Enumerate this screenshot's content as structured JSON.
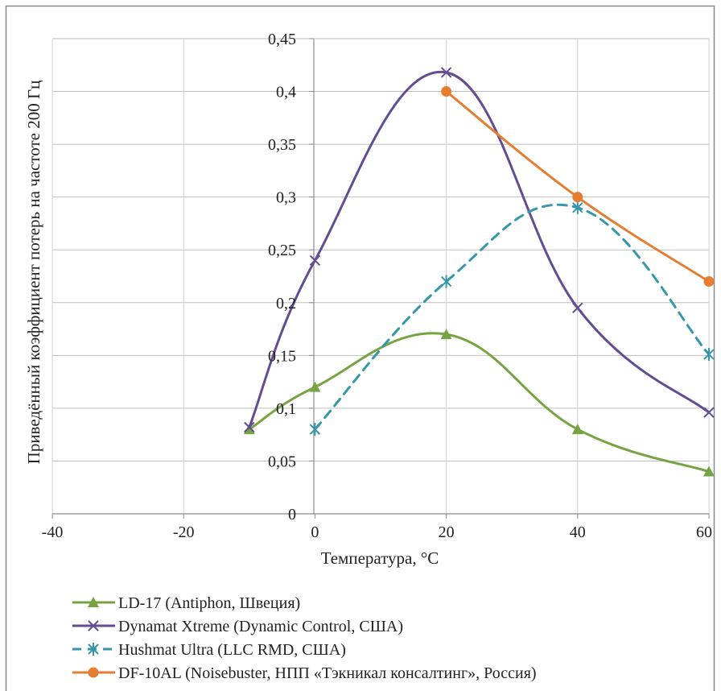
{
  "chart_data": {
    "type": "line",
    "title": "",
    "xlabel": "Температура, °С",
    "ylabel": "Приведённый коэффициент потерь на частоте 200 Гц",
    "xlim": [
      -40,
      60
    ],
    "ylim": [
      0,
      0.45
    ],
    "x_ticks": [
      -40,
      -20,
      0,
      20,
      40,
      60
    ],
    "x_tick_labels": [
      "-40",
      "-20",
      "0",
      "20",
      "40",
      "60"
    ],
    "y_ticks": [
      0,
      0.05,
      0.1,
      0.15,
      0.2,
      0.25,
      0.3,
      0.35,
      0.4,
      0.45
    ],
    "y_tick_labels": [
      "0",
      "0,05",
      "0,1",
      "0,15",
      "0,2",
      "0,25",
      "0,3",
      "0,35",
      "0,4",
      "0,45"
    ],
    "grid": true,
    "legend_position": "bottom",
    "series": [
      {
        "name": "LD-17 (Antiphon, Швеция)",
        "color": "#77a342",
        "marker": "triangle",
        "dash": "solid",
        "x": [
          -10,
          0,
          20,
          40,
          60
        ],
        "y": [
          0.08,
          0.12,
          0.17,
          0.08,
          0.04
        ]
      },
      {
        "name": "Dynamat Xtreme (Dynamic Control, США)",
        "color": "#634c91",
        "marker": "x",
        "dash": "solid",
        "x": [
          -10,
          0,
          20,
          40,
          60
        ],
        "y": [
          0.082,
          0.24,
          0.418,
          0.195,
          0.096
        ]
      },
      {
        "name": "Hushmat Ultra (LLC RMD, США)",
        "color": "#3696aa",
        "marker": "star",
        "dash": "dashed",
        "x": [
          0,
          20,
          40,
          60
        ],
        "y": [
          0.08,
          0.22,
          0.29,
          0.151
        ]
      },
      {
        "name": "DF-10AL (Noisebuster, НПП «Тэкникал консалтинг», Россия)",
        "color": "#e57e32",
        "marker": "circle",
        "dash": "solid",
        "x": [
          20,
          40,
          60
        ],
        "y": [
          0.4,
          0.3,
          0.22
        ]
      }
    ]
  }
}
